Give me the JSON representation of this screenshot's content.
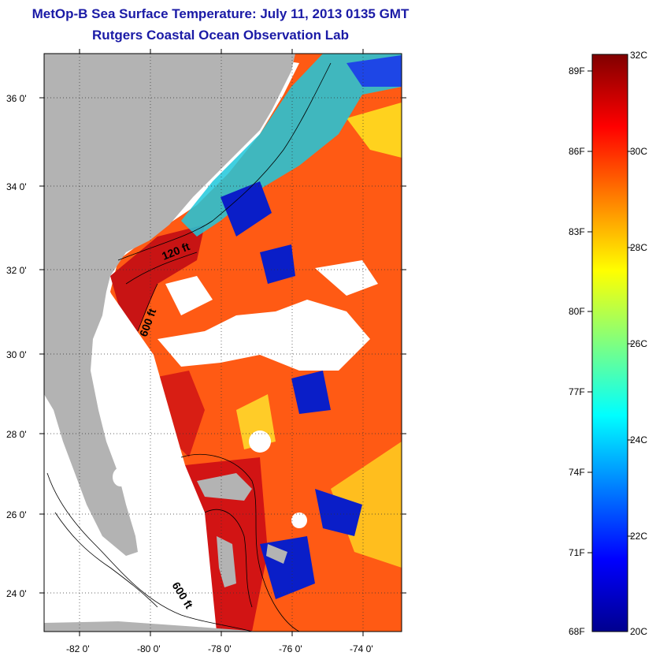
{
  "title": {
    "line1": "MetOp-B Sea Surface Temperature:  July 11, 2013 0135 GMT",
    "line2": "Rutgers Coastal Ocean Observation Lab"
  },
  "map": {
    "lat_labels": [
      "36 0'",
      "34 0'",
      "32 0'",
      "30 0'",
      "28 0'",
      "26 0'",
      "24 0'"
    ],
    "lon_labels": [
      "-82 0'",
      "-80 0'",
      "-78 0'",
      "-76 0'",
      "-74 0'"
    ],
    "contour_labels": [
      "120 ft",
      "600 ft",
      "600 ft"
    ],
    "colors": {
      "land": "#b3b3b3",
      "cloud": "#ffffff",
      "warm": "#ff5a14",
      "hot": "#cc1414",
      "cool": "#0a1ec8",
      "mid": "#ffd21e"
    }
  },
  "colorbar": {
    "fahrenheit_labels": [
      "89F",
      "86F",
      "83F",
      "80F",
      "77F",
      "74F",
      "71F",
      "68F"
    ],
    "celsius_labels": [
      "32C",
      "30C",
      "28C",
      "26C",
      "24C",
      "22C",
      "20C"
    ],
    "range_celsius": [
      20,
      32
    ],
    "colormap": "jet"
  }
}
